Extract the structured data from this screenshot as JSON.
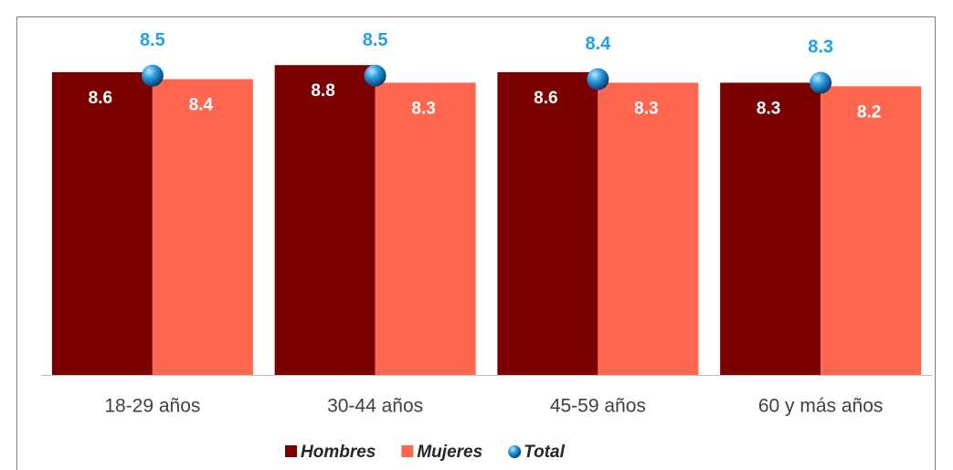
{
  "chart_data": {
    "type": "bar",
    "categories": [
      "18-29 años",
      "30-44 años",
      "45-59 años",
      "60 y más años"
    ],
    "series": [
      {
        "name": "Hombres",
        "color": "#7b0000",
        "values": [
          8.6,
          8.8,
          8.6,
          8.3
        ]
      },
      {
        "name": "Mujeres",
        "color": "#ff6650",
        "values": [
          8.4,
          8.3,
          8.3,
          8.2
        ]
      },
      {
        "name": "Total",
        "type": "scatter",
        "color": "#1e88d0",
        "values": [
          8.5,
          8.5,
          8.4,
          8.3
        ]
      }
    ],
    "legend": "bottom"
  }
}
